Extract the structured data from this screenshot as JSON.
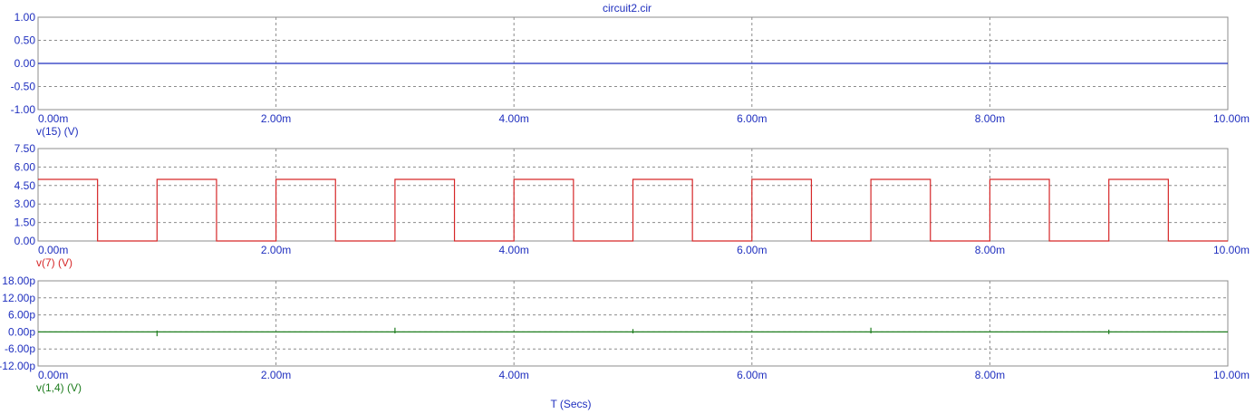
{
  "title": "circuit2.cir",
  "xlabel": "T (Secs)",
  "colors": {
    "text": "#1f2fbf",
    "grid": "#8c8c8c",
    "v15": "#1f2fbf",
    "v7": "#d62728",
    "v14": "#1e7d1e"
  },
  "chart_data": [
    {
      "type": "line",
      "series": [
        {
          "name": "v(15) (V)",
          "color": "#1f2fbf",
          "x": [
            0,
            10
          ],
          "y": [
            0,
            0
          ]
        }
      ],
      "xlim": [
        0,
        10
      ],
      "ylim": [
        -1,
        1
      ],
      "x_ticks": [
        0,
        2,
        4,
        6,
        8,
        10
      ],
      "x_tick_labels": [
        "0.00m",
        "2.00m",
        "4.00m",
        "6.00m",
        "8.00m",
        "10.00m"
      ],
      "y_ticks": [
        1,
        0.5,
        0,
        -0.5,
        -1
      ],
      "y_tick_labels": [
        "1.00",
        "0.50",
        "0.00",
        "-0.50",
        "-1.00"
      ],
      "legend_position": "bottom-left",
      "grid": true
    },
    {
      "type": "line",
      "series": [
        {
          "name": "v(7) (V)",
          "color": "#d62728",
          "x": [
            0,
            0.5,
            0.5,
            1.0,
            1.0,
            1.5,
            1.5,
            2.0,
            2.0,
            2.5,
            2.5,
            3.0,
            3.0,
            3.5,
            3.5,
            4.0,
            4.0,
            4.5,
            4.5,
            5.0,
            5.0,
            5.5,
            5.5,
            6.0,
            6.0,
            6.5,
            6.5,
            7.0,
            7.0,
            7.5,
            7.5,
            8.0,
            8.0,
            8.5,
            8.5,
            9.0,
            9.0,
            9.5,
            9.5,
            10.0
          ],
          "y": [
            5,
            5,
            0,
            0,
            5,
            5,
            0,
            0,
            5,
            5,
            0,
            0,
            5,
            5,
            0,
            0,
            5,
            5,
            0,
            0,
            5,
            5,
            0,
            0,
            5,
            5,
            0,
            0,
            5,
            5,
            0,
            0,
            5,
            5,
            0,
            0,
            5,
            5,
            0,
            0
          ]
        }
      ],
      "xlim": [
        0,
        10
      ],
      "ylim": [
        0,
        7.5
      ],
      "x_ticks": [
        0,
        2,
        4,
        6,
        8,
        10
      ],
      "x_tick_labels": [
        "0.00m",
        "2.00m",
        "4.00m",
        "6.00m",
        "8.00m",
        "10.00m"
      ],
      "y_ticks": [
        7.5,
        6,
        4.5,
        3,
        1.5,
        0
      ],
      "y_tick_labels": [
        "7.50",
        "6.00",
        "4.50",
        "3.00",
        "1.50",
        "0.00"
      ],
      "legend_position": "bottom-left",
      "grid": true
    },
    {
      "type": "line",
      "series": [
        {
          "name": "v(1,4) (V)",
          "color": "#1e7d1e",
          "x": [
            0,
            1.0,
            1.0,
            1.0,
            1.0,
            3.0,
            3.0,
            3.0,
            3.0,
            5.0,
            5.0,
            5.0,
            5.0,
            7.0,
            7.0,
            7.0,
            7.0,
            9.0,
            9.0,
            9.0,
            9.0,
            10.0
          ],
          "y": [
            0,
            0,
            -1.5,
            0.5,
            0,
            0,
            1.5,
            -0.5,
            0,
            0,
            1.0,
            -0.5,
            0,
            0,
            1.5,
            -0.5,
            0,
            0,
            0.8,
            -0.8,
            0,
            0
          ]
        }
      ],
      "xlim": [
        0,
        10
      ],
      "ylim": [
        -12,
        18
      ],
      "x_ticks": [
        0,
        2,
        4,
        6,
        8,
        10
      ],
      "x_tick_labels": [
        "0.00m",
        "2.00m",
        "4.00m",
        "6.00m",
        "8.00m",
        "10.00m"
      ],
      "y_ticks": [
        18,
        12,
        6,
        0,
        -6,
        -12
      ],
      "y_tick_labels": [
        "18.00p",
        "12.00p",
        "6.00p",
        "0.00p",
        "-6.00p",
        "-12.00p"
      ],
      "legend_position": "bottom-left",
      "grid": true
    }
  ]
}
